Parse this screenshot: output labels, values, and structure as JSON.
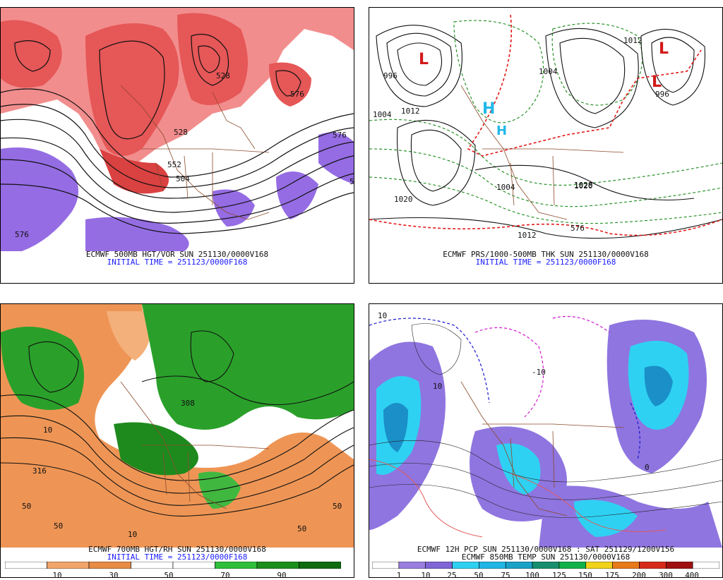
{
  "panels": [
    {
      "id": "p1",
      "caption_line1": "ECMWF 500MB HGT/VOR SUN 251130/0000V168",
      "caption_line2": "INITIAL TIME = 251123/0000F168",
      "contour_labels": [
        "576",
        "552",
        "528",
        "504",
        "528",
        "576",
        "576",
        "5"
      ]
    },
    {
      "id": "p2",
      "caption_line1": "ECMWF PRS/1000-500MB THK SUN 251130/0000V168",
      "caption_line2": "INITIAL TIME = 251123/0000F168",
      "contour_labels": [
        "1004",
        "1012",
        "1020",
        "996",
        "1004",
        "1012",
        "1020",
        "996",
        "1012",
        "576",
        "1004",
        "1028"
      ]
    },
    {
      "id": "p3",
      "caption_line1": "ECMWF 700MB HGT/RH SUN 251130/0000V168",
      "caption_line2": "INITIAL TIME = 251123/0000F168",
      "contour_labels": [
        "316",
        "308",
        "50",
        "50",
        "10",
        "50",
        "50",
        "10"
      ],
      "colorbar": {
        "ticks": [
          "10",
          "30",
          "50",
          "70",
          "90"
        ],
        "colors": [
          "#ffffff",
          "#f2a56b",
          "#e88b45",
          "#ffffff",
          "#ffffff",
          "#2fbf3a",
          "#1a8f1a",
          "#0f6b0f"
        ]
      }
    },
    {
      "id": "p4",
      "caption_line1": "ECMWF 12H PCP SUN 251130/0000V168 : SAT 251129/1200V156",
      "caption_line2": "ECMWF 850MB TEMP SUN 251130/0000V168",
      "contour_labels": [
        "10",
        "-10",
        "0",
        "10"
      ],
      "colorbar": {
        "ticks": [
          "1",
          "10",
          "25",
          "50",
          "75",
          "100",
          "125",
          "150",
          "175",
          "200",
          "300",
          "400"
        ],
        "colors": [
          "#ffffff",
          "#9a7fe0",
          "#7f66d6",
          "#2fd1f2",
          "#1fb6e6",
          "#1aa1c8",
          "#178f6e",
          "#12b24a",
          "#f2d21a",
          "#e87a1a",
          "#d62a1a",
          "#a01010",
          "#ffffff"
        ]
      }
    }
  ]
}
